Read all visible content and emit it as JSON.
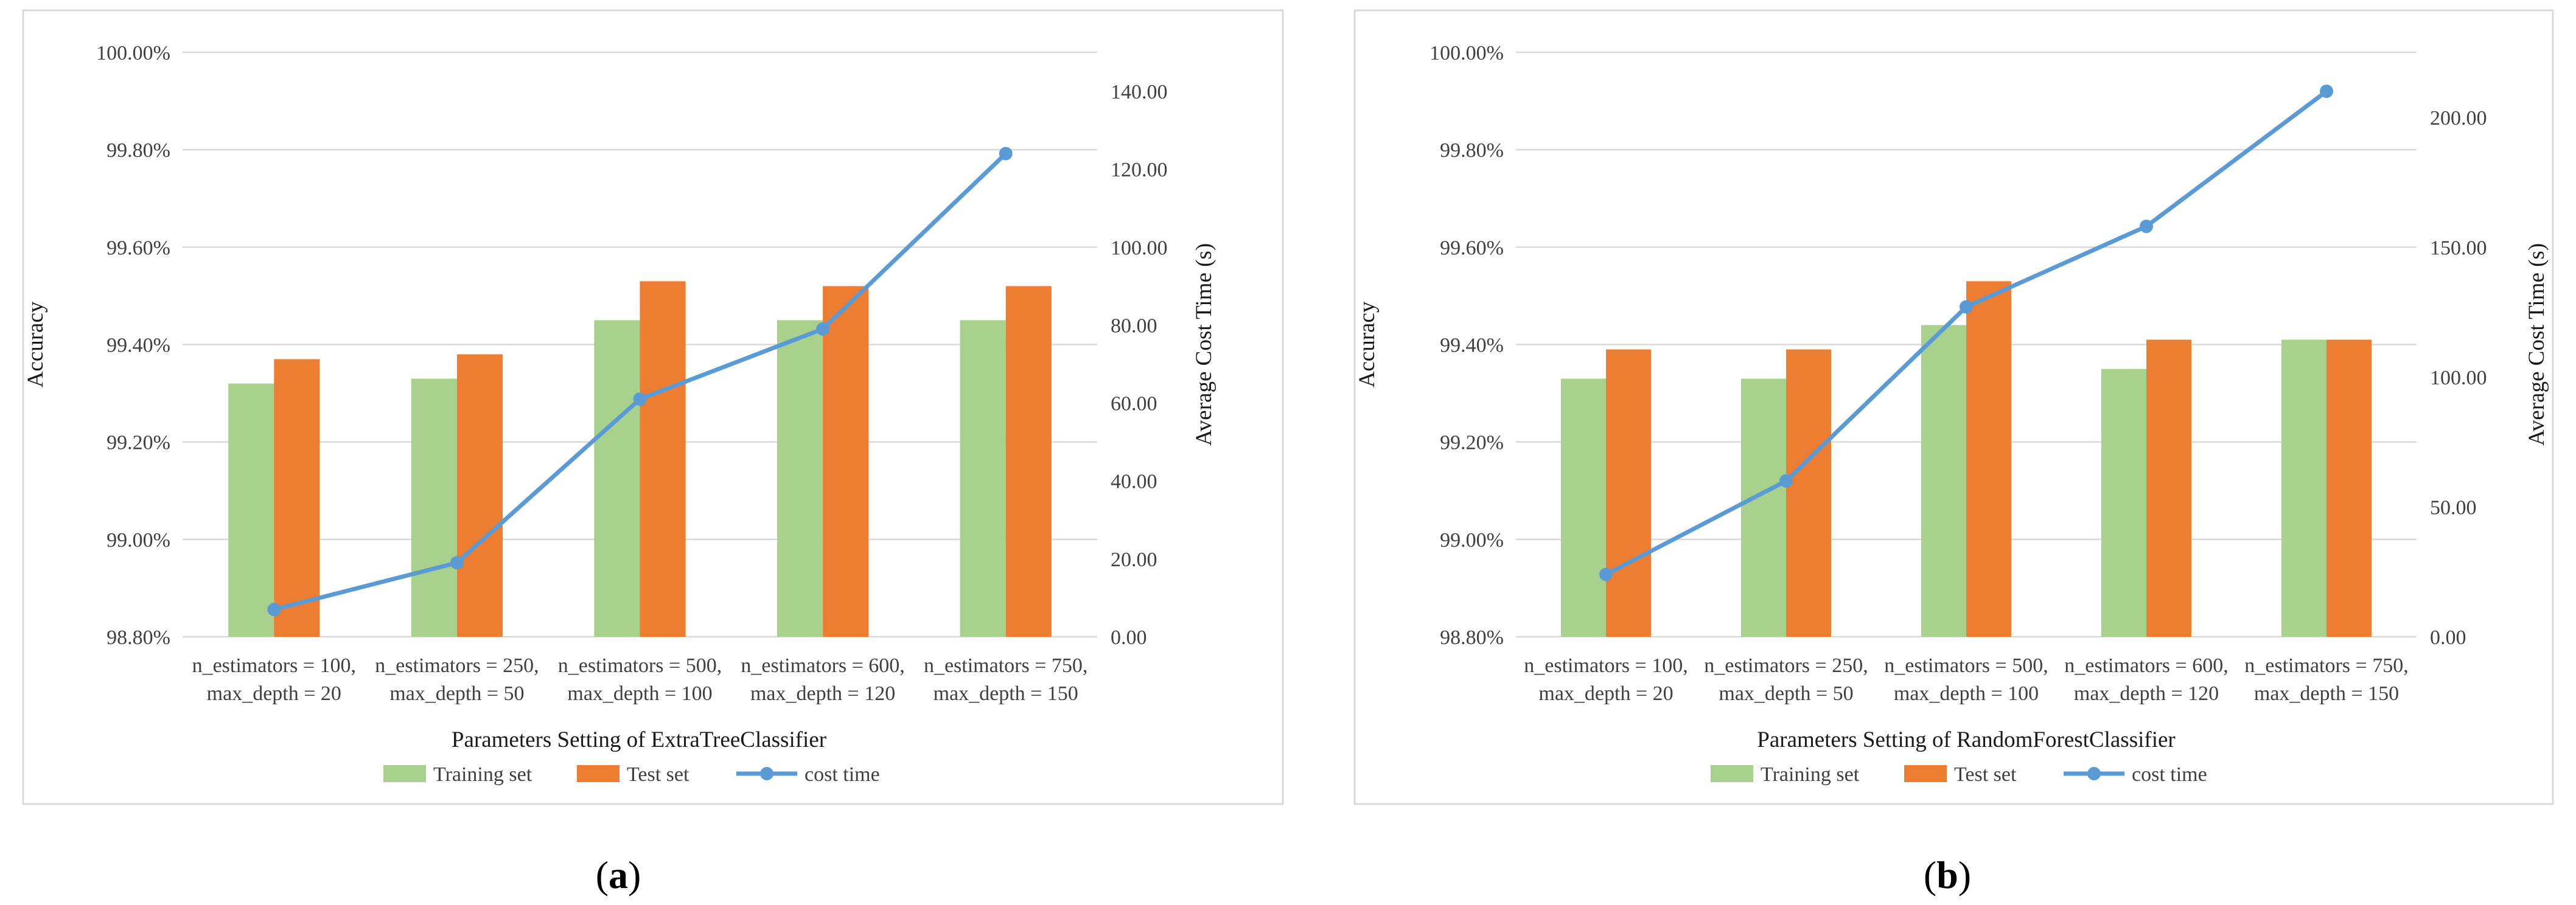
{
  "colors": {
    "training": "#a9d18e",
    "test": "#ed7d31",
    "cost": "#5b9bd5"
  },
  "chart_data": [
    {
      "type": "bar+line",
      "panel_label": {
        "open": "(",
        "letter": "a",
        "close": ")"
      },
      "categories": [
        [
          "n_estimators = 100,",
          "max_depth = 20"
        ],
        [
          "n_estimators = 250,",
          "max_depth = 50"
        ],
        [
          "n_estimators = 500,",
          "max_depth = 100"
        ],
        [
          "n_estimators = 600,",
          "max_depth = 120"
        ],
        [
          "n_estimators = 750,",
          "max_depth = 150"
        ]
      ],
      "series": [
        {
          "name": "Training set",
          "type": "bar",
          "axis": "left",
          "values": [
            99.32,
            99.33,
            99.45,
            99.45,
            99.45
          ]
        },
        {
          "name": "Test set",
          "type": "bar",
          "axis": "left",
          "values": [
            99.37,
            99.38,
            99.53,
            99.52,
            99.52
          ]
        },
        {
          "name": "cost time",
          "type": "line",
          "axis": "right",
          "values": [
            7.0,
            19.0,
            61.0,
            79.0,
            124.0
          ]
        }
      ],
      "xlabel": "Parameters Setting of ExtraTreeClassifier",
      "ylabel": "Accuracy",
      "y2label": "Average Cost Time (s)",
      "ylim": [
        98.8,
        100.0
      ],
      "y_ticks": [
        98.8,
        99.0,
        99.2,
        99.4,
        99.6,
        99.8,
        100.0
      ],
      "y_tick_labels": [
        "98.80%",
        "99.00%",
        "99.20%",
        "99.40%",
        "99.60%",
        "99.80%",
        "100.00%"
      ],
      "y2lim": [
        0,
        150
      ],
      "y2_ticks": [
        0,
        20,
        40,
        60,
        80,
        100,
        120,
        140
      ],
      "y2_tick_labels": [
        "0.00",
        "20.00",
        "40.00",
        "60.00",
        "80.00",
        "100.00",
        "120.00",
        "140.00"
      ],
      "legend": [
        "Training set",
        "Test set",
        "cost time"
      ],
      "legend_position": "bottom",
      "grid": true
    },
    {
      "type": "bar+line",
      "panel_label": {
        "open": "(",
        "letter": "b",
        "close": ")"
      },
      "categories": [
        [
          "n_estimators = 100,",
          "max_depth = 20"
        ],
        [
          "n_estimators = 250,",
          "max_depth = 50"
        ],
        [
          "n_estimators = 500,",
          "max_depth = 100"
        ],
        [
          "n_estimators = 600,",
          "max_depth = 120"
        ],
        [
          "n_estimators = 750,",
          "max_depth = 150"
        ]
      ],
      "series": [
        {
          "name": "Training set",
          "type": "bar",
          "axis": "left",
          "values": [
            99.33,
            99.33,
            99.44,
            99.35,
            99.41
          ]
        },
        {
          "name": "Test set",
          "type": "bar",
          "axis": "left",
          "values": [
            99.39,
            99.39,
            99.53,
            99.41,
            99.41
          ]
        },
        {
          "name": "cost time",
          "type": "line",
          "axis": "right",
          "values": [
            24.0,
            60.0,
            127.0,
            158.0,
            210.0
          ]
        }
      ],
      "xlabel": "Parameters Setting of RandomForestClassifier",
      "ylabel": "Accuracy",
      "y2label": "Average Cost Time (s)",
      "ylim": [
        98.8,
        100.0
      ],
      "y_ticks": [
        98.8,
        99.0,
        99.2,
        99.4,
        99.6,
        99.8,
        100.0
      ],
      "y_tick_labels": [
        "98.80%",
        "99.00%",
        "99.20%",
        "99.40%",
        "99.60%",
        "99.80%",
        "100.00%"
      ],
      "y2lim": [
        0,
        225
      ],
      "y2_ticks": [
        0,
        50,
        100,
        150,
        200
      ],
      "y2_tick_labels": [
        "0.00",
        "50.00",
        "100.00",
        "150.00",
        "200.00"
      ],
      "legend": [
        "Training set",
        "Test set",
        "cost time"
      ],
      "legend_position": "bottom",
      "grid": true
    }
  ]
}
